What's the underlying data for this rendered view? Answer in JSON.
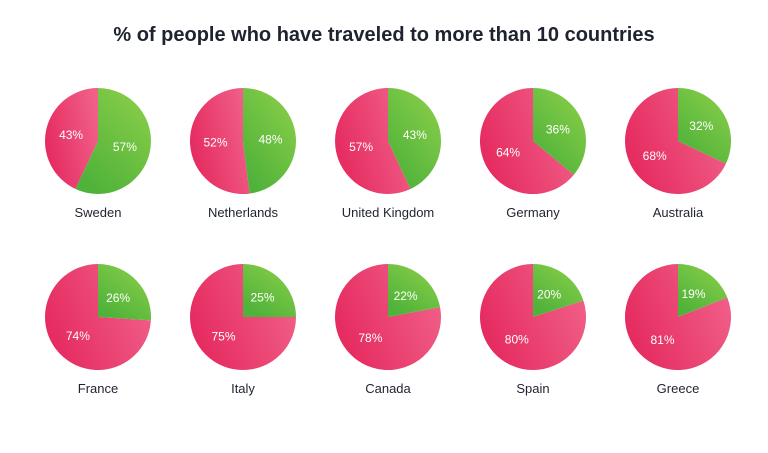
{
  "header": {
    "title": "% of people who have traveled to more than 10 countries"
  },
  "colors": {
    "green_start": "#8fd14a",
    "green_end": "#4fb23a",
    "pink_start": "#f06088",
    "pink_end": "#e5285e"
  },
  "chart_data": {
    "type": "pie",
    "title": "% of people who have traveled to more than 10 countries",
    "pies": [
      {
        "country": "Sweden",
        "green": 57,
        "pink": 43,
        "green_label": "57%",
        "pink_label": "43%"
      },
      {
        "country": "Netherlands",
        "green": 48,
        "pink": 52,
        "green_label": "48%",
        "pink_label": "52%"
      },
      {
        "country": "United Kingdom",
        "green": 43,
        "pink": 57,
        "green_label": "43%",
        "pink_label": "57%"
      },
      {
        "country": "Germany",
        "green": 36,
        "pink": 64,
        "green_label": "36%",
        "pink_label": "64%"
      },
      {
        "country": "Australia",
        "green": 32,
        "pink": 68,
        "green_label": "32%",
        "pink_label": "68%"
      },
      {
        "country": "France",
        "green": 26,
        "pink": 74,
        "green_label": "26%",
        "pink_label": "74%"
      },
      {
        "country": "Italy",
        "green": 25,
        "pink": 75,
        "green_label": "25%",
        "pink_label": "75%"
      },
      {
        "country": "Canada",
        "green": 22,
        "pink": 78,
        "green_label": "22%",
        "pink_label": "78%"
      },
      {
        "country": "Spain",
        "green": 20,
        "pink": 80,
        "green_label": "20%",
        "pink_label": "80%"
      },
      {
        "country": "Greece",
        "green": 19,
        "pink": 81,
        "green_label": "19%",
        "pink_label": "81%"
      }
    ]
  }
}
